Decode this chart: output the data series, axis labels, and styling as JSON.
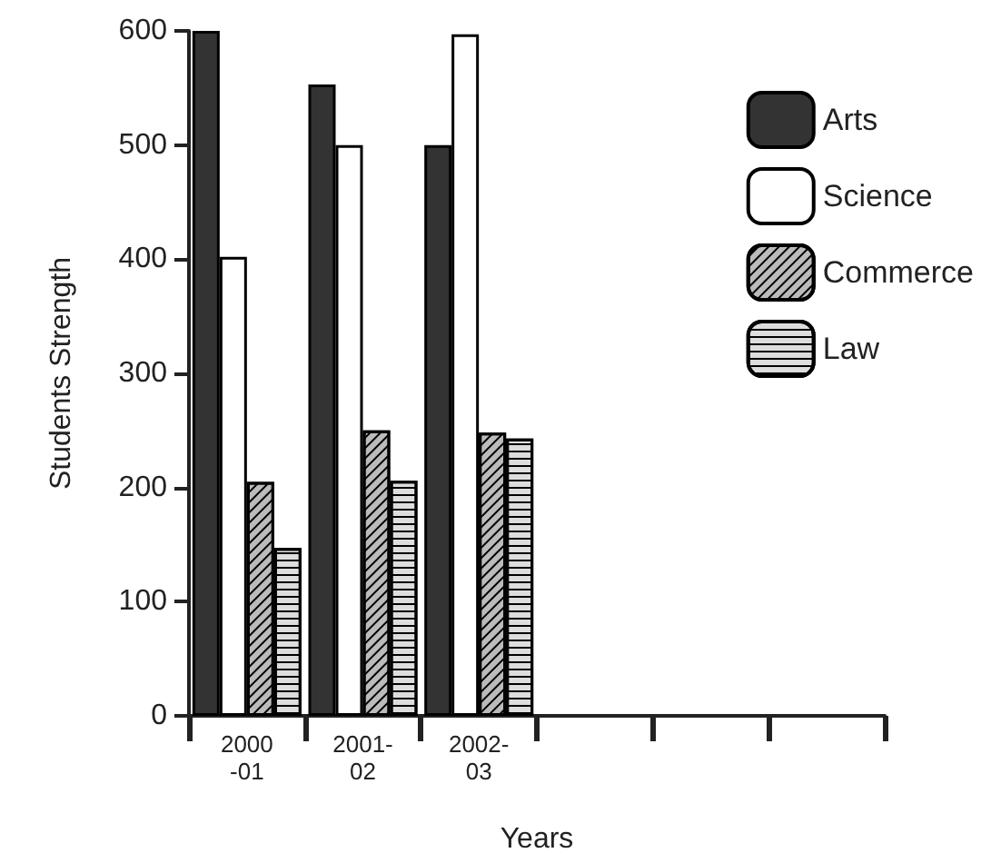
{
  "chart_data": {
    "type": "bar",
    "xlabel": "Years",
    "ylabel": "Students Strength",
    "categories": [
      "2000\n-01",
      "2001-\n02",
      "2002-\n03",
      null,
      null,
      null
    ],
    "series": [
      {
        "name": "Arts",
        "color": "#333333",
        "values": [
          600,
          553,
          500,
          null,
          null,
          null
        ]
      },
      {
        "name": "Science",
        "color": "#ffffff",
        "values": [
          402,
          500,
          597,
          null,
          null,
          null
        ]
      },
      {
        "name": "Commerce",
        "color": "#bbbbbb",
        "values": [
          205,
          250,
          248,
          null,
          null,
          null
        ]
      },
      {
        "name": "Law",
        "color": "#dddddd",
        "values": [
          147,
          206,
          243,
          null,
          null,
          null
        ]
      }
    ],
    "ylim": [
      0,
      600
    ],
    "yticks": [
      0,
      100,
      200,
      300,
      400,
      500,
      600
    ],
    "legend": "top right",
    "grid": false
  }
}
